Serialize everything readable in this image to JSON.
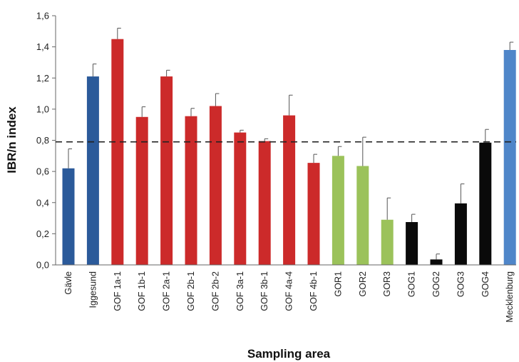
{
  "chart_data": {
    "type": "bar",
    "title": "",
    "xlabel": "Sampling area",
    "ylabel": "IBR/n index",
    "ylim": [
      0,
      1.6
    ],
    "yticks": [
      "0,0",
      "0,2",
      "0,4",
      "0,6",
      "0,8",
      "1,0",
      "1,2",
      "1,4",
      "1,6"
    ],
    "reference_line": 0.79,
    "grid": false,
    "legend": "none",
    "categories": [
      "Gävle",
      "Iggesund",
      "GOF 1a-1",
      "GOF 1b-1",
      "GOF 2a-1",
      "GOF 2b-1",
      "GOF 2b-2",
      "GOF 3a-1",
      "GOF 3b-1",
      "GOF 4a-4",
      "GOF 4b-1",
      "GOR1",
      "GOR2",
      "GOR3",
      "GOG1",
      "GOG2",
      "GOG3",
      "GOG4",
      "Mecklenburg"
    ],
    "values": [
      0.62,
      1.21,
      1.45,
      0.95,
      1.21,
      0.955,
      1.02,
      0.85,
      0.795,
      0.96,
      0.655,
      0.7,
      0.635,
      0.29,
      0.275,
      0.035,
      0.395,
      0.785,
      1.38
    ],
    "errors": [
      0.125,
      0.08,
      0.07,
      0.065,
      0.04,
      0.05,
      0.08,
      0.015,
      0.015,
      0.13,
      0.055,
      0.06,
      0.185,
      0.14,
      0.05,
      0.035,
      0.125,
      0.085,
      0.05
    ],
    "colors": [
      "#2b5a9a",
      "#2b5a9a",
      "#cc2a2a",
      "#cc2a2a",
      "#cc2a2a",
      "#cc2a2a",
      "#cc2a2a",
      "#cc2a2a",
      "#cc2a2a",
      "#cc2a2a",
      "#cc2a2a",
      "#9bc25a",
      "#9bc25a",
      "#9bc25a",
      "#0a0a0a",
      "#0a0a0a",
      "#0a0a0a",
      "#0a0a0a",
      "#4f86c9"
    ]
  }
}
